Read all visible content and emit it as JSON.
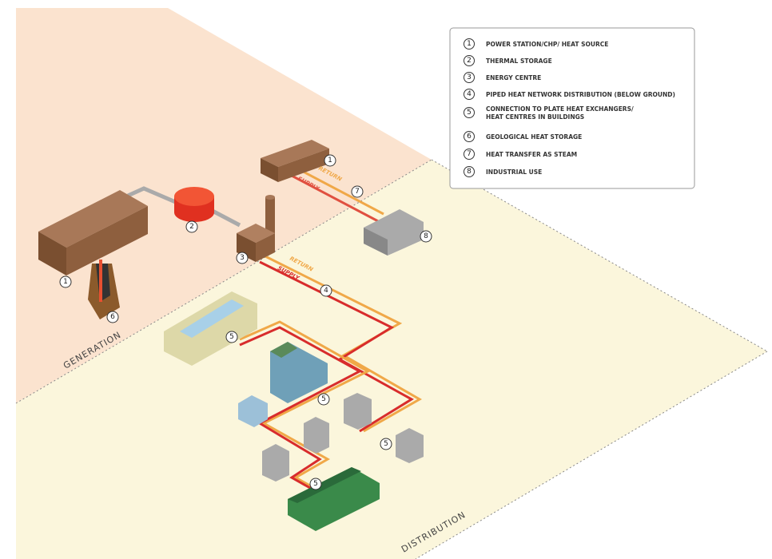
{
  "legend": {
    "items": [
      {
        "number": "1",
        "lines": [
          "POWER STATION/CHP/ HEAT SOURCE"
        ]
      },
      {
        "number": "2",
        "lines": [
          "THERMAL STORAGE"
        ]
      },
      {
        "number": "3",
        "lines": [
          "ENERGY CENTRE"
        ]
      },
      {
        "number": "4",
        "lines": [
          "PIPED HEAT NETWORK DISTRIBUTION (BELOW GROUND)"
        ]
      },
      {
        "number": "5",
        "lines": [
          "CONNECTION TO PLATE HEAT EXCHANGERS/",
          "HEAT CENTRES IN BUILDINGS"
        ]
      },
      {
        "number": "6",
        "lines": [
          "GEOLOGICAL HEAT STORAGE"
        ]
      },
      {
        "number": "7",
        "lines": [
          "HEAT TRANSFER AS STEAM"
        ]
      },
      {
        "number": "8",
        "lines": [
          "INDUSTRIAL USE"
        ]
      }
    ]
  },
  "zones": {
    "generation": "GENERATION",
    "distribution": "DISTRIBUTION"
  },
  "pipe_labels": [
    {
      "return": "RETURN",
      "supply": "SUPPLY"
    },
    {
      "return": "RETURN",
      "supply": "SUPPLY"
    }
  ],
  "markers": [
    "1",
    "1",
    "2",
    "3",
    "4",
    "5",
    "5",
    "5",
    "5",
    "6",
    "7",
    "8"
  ]
}
